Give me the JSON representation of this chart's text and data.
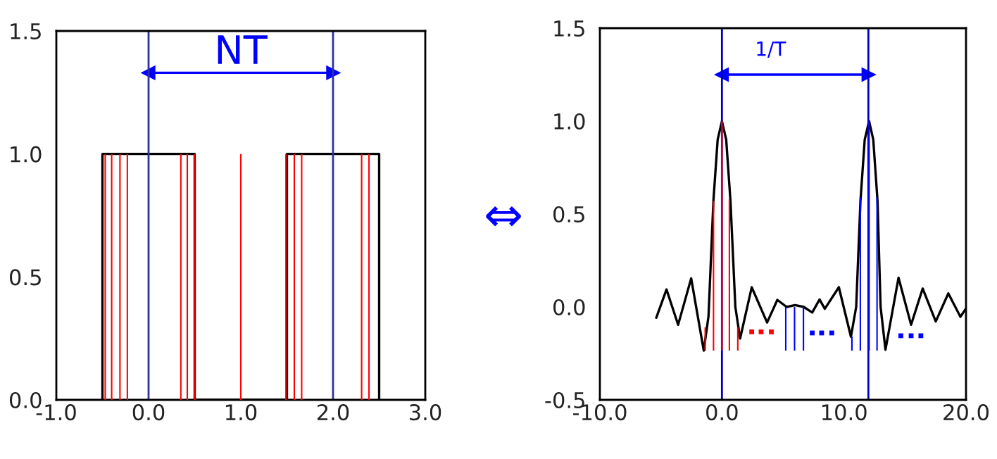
{
  "chart_data": [
    {
      "type": "line",
      "xlim": [
        -1,
        3
      ],
      "ylim": [
        0,
        1.5
      ],
      "xticks": [
        {
          "value": -1,
          "label": "-1.0"
        },
        {
          "value": 0,
          "label": "0.0"
        },
        {
          "value": 1,
          "label": "1.0"
        },
        {
          "value": 2,
          "label": "2.0"
        },
        {
          "value": 3,
          "label": "3.0"
        }
      ],
      "yticks": [
        {
          "value": 0,
          "label": "0.0"
        },
        {
          "value": 0.5,
          "label": "0.5"
        },
        {
          "value": 1,
          "label": "1.0"
        },
        {
          "value": 1.5,
          "label": "1.5"
        }
      ],
      "grid": false,
      "ref_lines": [
        {
          "axis": "x",
          "value": 0,
          "color": "#3030a0"
        },
        {
          "axis": "x",
          "value": 2,
          "color": "#3030a0"
        }
      ],
      "annotations": [
        "NT",
        "⇔"
      ],
      "series": [
        {
          "color": "#000000",
          "x": [
            -0.5,
            -0.5,
            0.5,
            0.5,
            1.5,
            1.5,
            2.5,
            2.5
          ],
          "values": [
            0,
            1,
            1,
            0,
            0,
            1,
            1,
            0
          ]
        },
        {
          "type": "bar",
          "color": "#ff0000",
          "x": [
            -0.47,
            -0.4,
            -0.31,
            -0.23,
            0.35,
            0.42,
            0.5,
            1.0,
            1.49,
            1.58,
            1.66,
            2.31,
            2.39
          ],
          "base": [
            0,
            0,
            0,
            0,
            0,
            0,
            0,
            0,
            0,
            0,
            0,
            0,
            0
          ],
          "values": [
            1,
            1,
            1,
            1,
            1,
            1,
            1,
            1,
            1,
            1,
            1,
            1,
            1
          ]
        },
        {
          "color": "#0000ff",
          "marker": "triangle",
          "x": [
            0,
            2
          ],
          "values": [
            1.33,
            1.33
          ]
        }
      ]
    },
    {
      "type": "line",
      "xlim": [
        -10,
        20
      ],
      "ylim": [
        -0.5,
        1.5
      ],
      "xticks": [
        {
          "value": -10,
          "label": "-10.0"
        },
        {
          "value": 0,
          "label": "0.0"
        },
        {
          "value": 10,
          "label": "10.0"
        },
        {
          "value": 20,
          "label": "20.0"
        }
      ],
      "yticks": [
        {
          "value": -0.5,
          "label": "-0.5"
        },
        {
          "value": 0,
          "label": "0.0"
        },
        {
          "value": 0.5,
          "label": "0.5"
        },
        {
          "value": 1,
          "label": "1.0"
        },
        {
          "value": 1.5,
          "label": "1.5"
        }
      ],
      "grid": false,
      "ref_lines": [
        {
          "axis": "x",
          "value": 0,
          "color": "#0000c0"
        },
        {
          "axis": "x",
          "value": 12,
          "color": "#0000c0"
        }
      ],
      "annotations": [
        "1/T"
      ],
      "series": [
        {
          "color": "#000000",
          "x": [
            -5.38,
            -4.54,
            -3.59,
            -2.52,
            -1.49,
            -1.1,
            -0.7,
            -0.35,
            0,
            0.35,
            0.7,
            1.1,
            1.49,
            2.44,
            3.7,
            4.54,
            5.3,
            6.0,
            6.7,
            7.4,
            8.0,
            8.43,
            9.58,
            10.57,
            11.0,
            11.35,
            11.7,
            12.06,
            12.4,
            12.75,
            13.0,
            13.4,
            14.47,
            15.5,
            16.45,
            17.52,
            18.55,
            19.54,
            20.0
          ],
          "values": [
            -0.058,
            0.094,
            -0.096,
            0.154,
            -0.235,
            -0.05,
            0.57,
            0.9,
            1.0,
            0.9,
            0.57,
            0.0,
            -0.17,
            0.106,
            -0.084,
            0.038,
            0.0,
            0.01,
            0.0,
            -0.03,
            0.04,
            -0.01,
            0.106,
            -0.16,
            0.0,
            0.57,
            0.9,
            1.0,
            0.9,
            0.57,
            0.0,
            -0.23,
            0.157,
            -0.096,
            0.099,
            -0.078,
            0.073,
            -0.053,
            -0.008
          ]
        },
        {
          "type": "bar",
          "color": "#ff0000",
          "x": [
            -1.37,
            -0.69,
            0,
            0.61,
            1.3
          ],
          "base": [
            -0.235,
            -0.235,
            -0.235,
            -0.235,
            -0.235
          ],
          "values": [
            0.125,
            0.805,
            1.235,
            0.815,
            0.125
          ]
        },
        {
          "type": "bar",
          "color": "#0000ff",
          "x": [
            5.23,
            5.95,
            6.68,
            10.65,
            11.34,
            12.06,
            12.71
          ],
          "base": [
            -0.235,
            -0.235,
            -0.235,
            -0.235,
            -0.235,
            -0.235,
            -0.235
          ],
          "values": [
            0.235,
            0.235,
            0.235,
            0.075,
            0.825,
            1.235,
            0.825
          ]
        },
        {
          "type": "scatter",
          "color": "#ff0000",
          "marker": "square",
          "x": [
            2.44,
            3.21,
            4.05
          ],
          "values": [
            -0.134,
            -0.134,
            -0.134
          ]
        },
        {
          "type": "scatter",
          "color": "#0000ff",
          "marker": "square",
          "x": [
            7.4,
            8.17,
            9.0,
            14.66,
            15.5,
            16.3
          ],
          "values": [
            -0.14,
            -0.14,
            -0.14,
            -0.155,
            -0.155,
            -0.155
          ]
        },
        {
          "color": "#0000ff",
          "marker": "triangle",
          "x": [
            0,
            12
          ],
          "values": [
            1.25,
            1.25
          ]
        }
      ]
    }
  ]
}
